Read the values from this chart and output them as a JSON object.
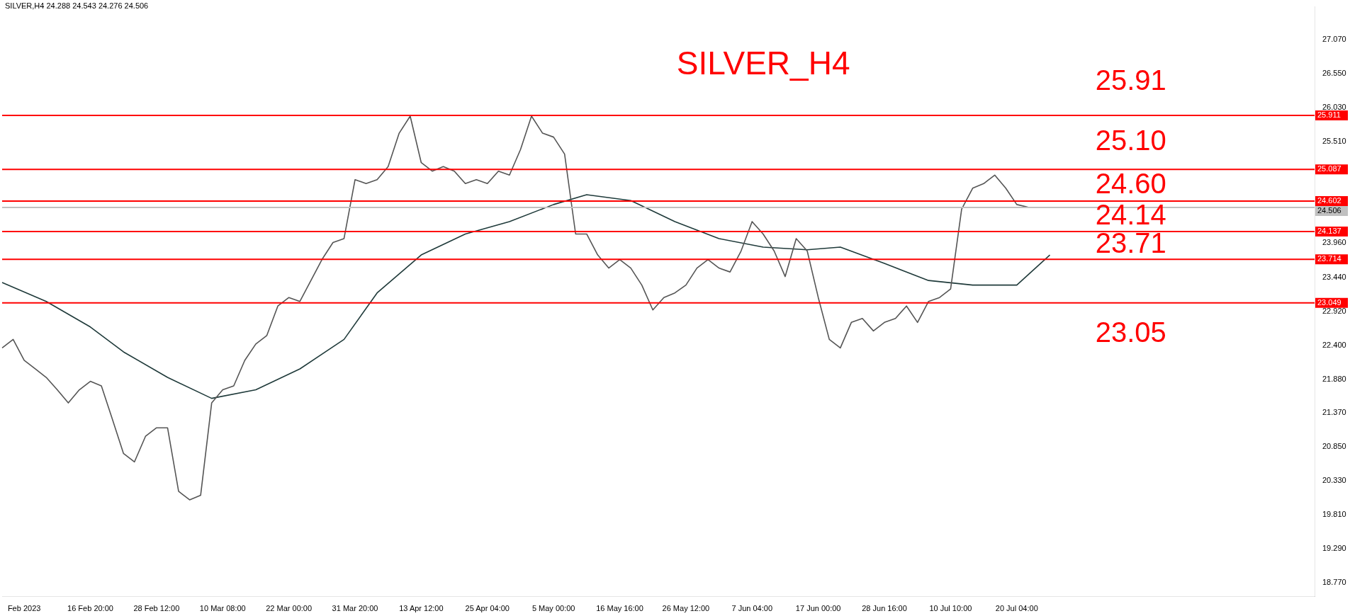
{
  "chart_data": {
    "type": "line",
    "title": "SILVER_H4",
    "subtitle": "SILVER,H4 24.288 24.543 24.276 24.506",
    "categories": [
      null,
      null,
      "Feb 2023",
      null,
      null,
      null,
      null,
      null,
      "16 Feb 20:00",
      null,
      null,
      null,
      null,
      null,
      "28 Feb 12:00",
      null,
      null,
      null,
      null,
      null,
      "10 Mar 08:00",
      null,
      null,
      null,
      null,
      null,
      "22 Mar 00:00",
      null,
      null,
      null,
      null,
      null,
      "31 Mar 20:00",
      null,
      null,
      null,
      null,
      null,
      "13 Apr 12:00",
      null,
      null,
      null,
      null,
      null,
      "25 Apr 04:00",
      null,
      null,
      null,
      null,
      null,
      "5 May 00:00",
      null,
      null,
      null,
      null,
      null,
      "16 May 16:00",
      null,
      null,
      null,
      null,
      null,
      "26 May 12:00",
      null,
      null,
      null,
      null,
      null,
      "7 Jun 04:00",
      null,
      null,
      null,
      null,
      null,
      "17 Jun 00:00",
      null,
      null,
      null,
      null,
      null,
      "28 Jun 16:00",
      null,
      null,
      null,
      null,
      null,
      "10 Jul 10:00",
      null,
      null,
      null,
      null,
      null,
      "20 Jul 04:00",
      null,
      null,
      null,
      null,
      null,
      null,
      null,
      null,
      null,
      null,
      null,
      null,
      null,
      null,
      null,
      null,
      null,
      null,
      null,
      null,
      null,
      null,
      null,
      null,
      null,
      null,
      null
    ],
    "series": [
      {
        "color": "#555555",
        "values": [
          22.36,
          22.49,
          22.17,
          22.04,
          21.91,
          21.72,
          21.52,
          21.72,
          21.85,
          21.78,
          21.27,
          20.75,
          20.62,
          21.01,
          21.14,
          21.14,
          20.17,
          20.04,
          20.11,
          21.52,
          21.72,
          21.78,
          22.17,
          22.42,
          22.55,
          23.0,
          23.13,
          23.07,
          23.39,
          23.71,
          23.97,
          24.03,
          24.93,
          24.87,
          24.93,
          25.13,
          25.64,
          25.9,
          25.19,
          25.06,
          25.13,
          25.06,
          24.87,
          24.93,
          24.87,
          25.06,
          25.0,
          25.39,
          25.9,
          25.64,
          25.58,
          25.32,
          24.1,
          24.1,
          23.78,
          23.58,
          23.71,
          23.58,
          23.32,
          22.94,
          23.13,
          23.2,
          23.32,
          23.58,
          23.71,
          23.58,
          23.52,
          23.84,
          24.29,
          24.1,
          23.84,
          23.45,
          24.03,
          23.84,
          23.13,
          22.49,
          22.36,
          22.75,
          22.81,
          22.62,
          22.75,
          22.81,
          23.0,
          22.75,
          23.07,
          23.13,
          23.26,
          24.48,
          24.8,
          24.87,
          25.0,
          24.8,
          24.55,
          24.51,
          null,
          null,
          null,
          null,
          null,
          null,
          null,
          null,
          null,
          null,
          null,
          null,
          null,
          null,
          null,
          null,
          null,
          null,
          null,
          null,
          null,
          null,
          null,
          null,
          null,
          null
        ]
      },
      {
        "color": "#1f3a3a",
        "values": [
          23.36,
          null,
          null,
          null,
          23.07,
          null,
          null,
          null,
          22.68,
          null,
          null,
          22.3,
          null,
          null,
          null,
          21.91,
          null,
          null,
          null,
          21.59,
          null,
          null,
          null,
          21.72,
          null,
          null,
          null,
          22.04,
          null,
          null,
          null,
          22.49,
          null,
          null,
          23.2,
          null,
          null,
          null,
          23.78,
          null,
          null,
          null,
          24.1,
          null,
          null,
          null,
          24.29,
          null,
          null,
          null,
          24.55,
          null,
          null,
          24.7,
          null,
          null,
          null,
          24.61,
          null,
          null,
          null,
          24.29,
          null,
          null,
          null,
          24.03,
          null,
          null,
          null,
          23.9,
          null,
          null,
          null,
          23.86,
          null,
          null,
          23.9,
          null,
          null,
          null,
          23.65,
          null,
          null,
          null,
          23.39,
          null,
          null,
          null,
          23.32,
          null,
          null,
          null,
          23.32,
          null,
          null,
          23.78,
          null,
          null,
          null,
          null,
          null,
          null,
          null,
          null,
          null,
          null,
          null,
          null,
          null,
          null,
          null,
          null,
          null,
          null,
          null,
          null,
          null,
          null,
          null,
          null
        ]
      }
    ],
    "ylim": [
      18.56,
      27.57
    ],
    "yticks": [
      {
        "value": 18.77,
        "label": "18.770"
      },
      {
        "value": 19.29,
        "label": "19.290"
      },
      {
        "value": 19.81,
        "label": "19.810"
      },
      {
        "value": 20.33,
        "label": "20.330"
      },
      {
        "value": 20.85,
        "label": "20.850"
      },
      {
        "value": 21.37,
        "label": "21.370"
      },
      {
        "value": 21.88,
        "label": "21.880"
      },
      {
        "value": 22.4,
        "label": "22.400"
      },
      {
        "value": 22.92,
        "label": "22.920"
      },
      {
        "value": 23.44,
        "label": "23.440"
      },
      {
        "value": 23.96,
        "label": "23.960"
      },
      {
        "value": 25.51,
        "label": "25.510"
      },
      {
        "value": 26.03,
        "label": "26.030"
      },
      {
        "value": 26.55,
        "label": "26.550"
      },
      {
        "value": 27.07,
        "label": "27.070"
      }
    ],
    "ref_lines": [
      {
        "axis": "y",
        "value": 24.506,
        "label": "24.506",
        "color": "#c0c0c0"
      },
      {
        "axis": "y",
        "value": 25.911,
        "label": "25.911",
        "color": "#ff0000"
      },
      {
        "axis": "y",
        "value": 25.087,
        "label": "25.087",
        "color": "#ff0000"
      },
      {
        "axis": "y",
        "value": 24.602,
        "label": "24.602",
        "color": "#ff0000"
      },
      {
        "axis": "y",
        "value": 24.137,
        "label": "24.137",
        "color": "#ff0000"
      },
      {
        "axis": "y",
        "value": 23.714,
        "label": "23.714",
        "color": "#ff0000"
      },
      {
        "axis": "y",
        "value": 23.049,
        "label": "23.049",
        "color": "#ff0000"
      }
    ],
    "annotations": [
      "25.91",
      "25.10",
      "24.60",
      "24.14",
      "23.71",
      "23.05"
    ],
    "grid": false,
    "legend": false,
    "marker": "none",
    "line_style": "solid"
  }
}
